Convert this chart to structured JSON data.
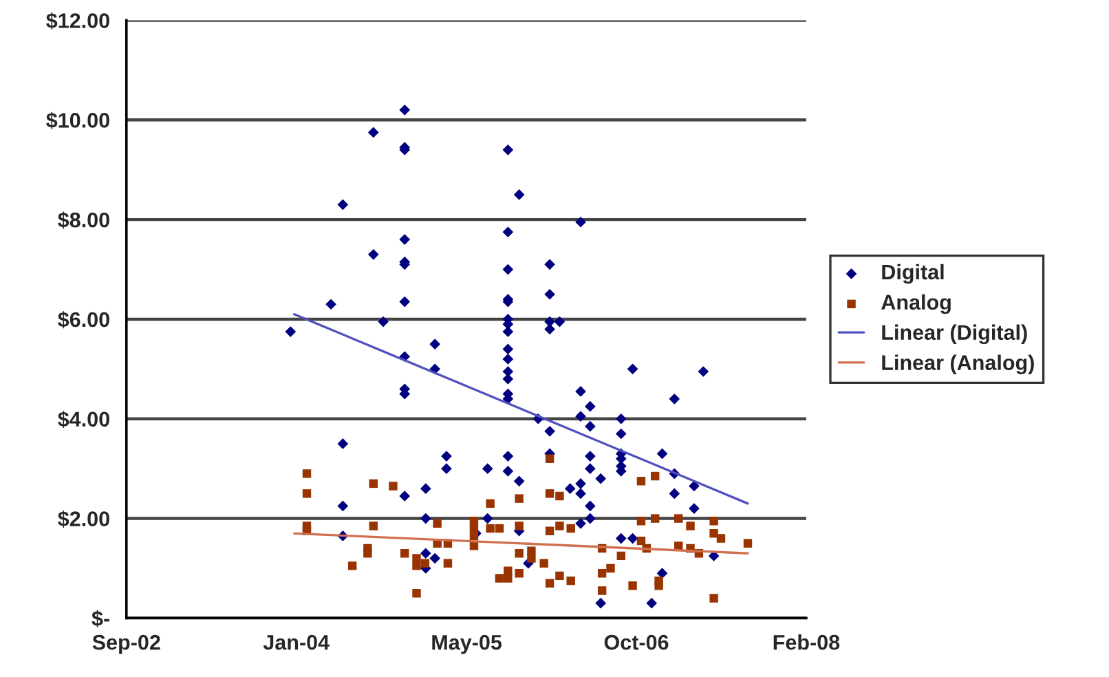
{
  "chart_data": {
    "type": "scatter",
    "legend": "right",
    "grid": "y",
    "xlim": [
      "2002-09-02",
      "2008-02-24"
    ],
    "xticks": [
      {
        "value": "2002-09-02",
        "label": "Sep-02"
      },
      {
        "value": "2004-01-15",
        "label": "Jan-04"
      },
      {
        "value": "2005-05-30",
        "label": "May-05"
      },
      {
        "value": "2006-10-12",
        "label": "Oct-06"
      },
      {
        "value": "2008-02-24",
        "label": "Feb-08"
      }
    ],
    "ylim": [
      0,
      12
    ],
    "yticks": [
      {
        "value": 0,
        "label": "$-"
      },
      {
        "value": 2,
        "label": "$2.00"
      },
      {
        "value": 4,
        "label": "$4.00"
      },
      {
        "value": 6,
        "label": "$6.00"
      },
      {
        "value": 8,
        "label": "$8.00"
      },
      {
        "value": 10,
        "label": "$10.00"
      },
      {
        "value": 12,
        "label": "$12.00"
      }
    ],
    "series": [
      {
        "name": "Digital",
        "marker": "diamond",
        "color": "#000080",
        "x": [
          "2003-12-29",
          "2004-04-26",
          "2004-05-31",
          "2004-05-31",
          "2004-05-31",
          "2004-05-31",
          "2004-08-29",
          "2004-08-29",
          "2004-09-27",
          "2004-11-29",
          "2004-11-29",
          "2004-11-29",
          "2004-11-29",
          "2004-11-29",
          "2004-11-29",
          "2004-11-29",
          "2004-11-29",
          "2004-11-29",
          "2004-11-29",
          "2004-11-29",
          "2005-01-30",
          "2005-01-30",
          "2005-01-30",
          "2005-01-30",
          "2005-02-26",
          "2005-02-26",
          "2005-02-26",
          "2005-04-01",
          "2005-04-01",
          "2005-06-27",
          "2005-07-31",
          "2005-07-31",
          "2005-09-29",
          "2005-09-29",
          "2005-09-29",
          "2005-09-29",
          "2005-09-29",
          "2005-09-29",
          "2005-09-29",
          "2005-09-29",
          "2005-09-29",
          "2005-09-29",
          "2005-09-29",
          "2005-09-29",
          "2005-09-29",
          "2005-09-29",
          "2005-09-29",
          "2005-09-29",
          "2005-11-01",
          "2005-11-01",
          "2005-11-01",
          "2005-11-28",
          "2005-12-27",
          "2006-01-30",
          "2006-01-30",
          "2006-01-30",
          "2006-01-30",
          "2006-01-30",
          "2006-01-30",
          "2006-02-28",
          "2006-03-31",
          "2006-05-01",
          "2006-05-01",
          "2006-05-01",
          "2006-05-01",
          "2006-05-01",
          "2006-05-01",
          "2006-05-29",
          "2006-05-29",
          "2006-05-29",
          "2006-05-29",
          "2006-05-29",
          "2006-05-29",
          "2006-06-29",
          "2006-06-29",
          "2006-08-28",
          "2006-08-28",
          "2006-08-28",
          "2006-08-28",
          "2006-08-28",
          "2006-08-28",
          "2006-08-28",
          "2006-10-01",
          "2006-10-01",
          "2006-11-26",
          "2006-12-27",
          "2006-12-27",
          "2007-02-01",
          "2007-02-01",
          "2007-02-01",
          "2007-03-31",
          "2007-03-31",
          "2007-04-27",
          "2007-05-28"
        ],
        "values": [
          5.75,
          6.3,
          8.3,
          3.5,
          2.25,
          1.65,
          9.75,
          7.3,
          5.95,
          10.2,
          9.45,
          9.4,
          7.6,
          7.15,
          7.1,
          6.35,
          5.25,
          4.6,
          4.5,
          2.45,
          2.6,
          2.0,
          1.3,
          1.0,
          5.5,
          5.0,
          1.2,
          3.25,
          3.0,
          1.7,
          3.0,
          2.0,
          9.4,
          7.75,
          7.0,
          6.4,
          6.35,
          6.0,
          5.9,
          5.75,
          5.4,
          5.2,
          4.95,
          4.8,
          4.5,
          4.4,
          3.25,
          2.95,
          8.5,
          2.75,
          1.75,
          1.1,
          4.0,
          7.1,
          6.5,
          5.95,
          5.8,
          3.75,
          3.3,
          5.95,
          2.6,
          7.95,
          4.55,
          4.05,
          2.7,
          2.5,
          1.9,
          4.25,
          3.85,
          3.25,
          3.0,
          2.25,
          2.0,
          2.8,
          0.3,
          4.0,
          3.7,
          3.3,
          3.2,
          3.05,
          2.95,
          1.6,
          5.0,
          1.6,
          0.3,
          3.3,
          0.9,
          4.4,
          2.9,
          2.5,
          2.65,
          2.2,
          4.95,
          1.25
        ]
      },
      {
        "name": "Analog",
        "marker": "square",
        "color": "#993300",
        "x": [
          "2004-02-15",
          "2004-02-15",
          "2004-02-15",
          "2004-02-15",
          "2004-06-28",
          "2004-08-12",
          "2004-08-12",
          "2004-08-29",
          "2004-08-29",
          "2004-10-26",
          "2004-11-29",
          "2005-01-03",
          "2005-01-03",
          "2005-01-03",
          "2005-01-28",
          "2005-03-05",
          "2005-03-05",
          "2005-04-05",
          "2005-04-05",
          "2005-06-21",
          "2005-06-21",
          "2005-06-21",
          "2005-06-21",
          "2005-08-08",
          "2005-08-08",
          "2005-09-04",
          "2005-09-04",
          "2005-09-29",
          "2005-09-29",
          "2005-11-01",
          "2005-11-01",
          "2005-11-01",
          "2005-11-01",
          "2005-12-07",
          "2005-12-07",
          "2006-01-13",
          "2006-01-30",
          "2006-01-30",
          "2006-01-30",
          "2006-01-30",
          "2006-02-28",
          "2006-02-28",
          "2006-02-28",
          "2006-04-02",
          "2006-04-02",
          "2006-07-03",
          "2006-07-03",
          "2006-07-03",
          "2006-07-28",
          "2006-08-28",
          "2006-10-01",
          "2006-10-26",
          "2006-10-26",
          "2006-10-26",
          "2006-11-11",
          "2006-12-06",
          "2006-12-06",
          "2006-12-17",
          "2006-12-17",
          "2007-02-13",
          "2007-02-13",
          "2007-03-20",
          "2007-03-20",
          "2007-04-14",
          "2007-05-28",
          "2007-05-28",
          "2007-05-28",
          "2007-06-18",
          "2007-09-05"
        ],
        "values": [
          2.9,
          2.5,
          1.85,
          1.75,
          1.05,
          1.4,
          1.3,
          1.85,
          2.7,
          2.65,
          1.3,
          1.2,
          1.05,
          0.5,
          1.1,
          1.9,
          1.5,
          1.1,
          1.5,
          1.95,
          1.8,
          1.65,
          1.45,
          2.3,
          1.8,
          1.8,
          0.8,
          0.8,
          0.95,
          2.4,
          1.85,
          0.9,
          1.3,
          1.35,
          1.2,
          1.1,
          3.2,
          2.5,
          1.75,
          0.7,
          2.45,
          1.85,
          0.85,
          1.8,
          0.75,
          1.4,
          0.9,
          0.55,
          1.0,
          1.25,
          0.65,
          2.75,
          1.95,
          1.55,
          1.4,
          2.85,
          2.0,
          0.75,
          0.65,
          2.0,
          1.45,
          1.4,
          1.85,
          1.3,
          0.4,
          1.95,
          1.7,
          1.6,
          1.5
        ]
      },
      {
        "name": "Linear (Digital)",
        "type": "line",
        "line_style": "solid",
        "color": "#5050c0",
        "x": [
          "2004-01-09",
          "2007-09-05"
        ],
        "values": [
          6.1,
          2.3
        ]
      },
      {
        "name": "Linear (Analog)",
        "type": "line",
        "line_style": "solid",
        "color": "#d07050",
        "x": [
          "2004-01-09",
          "2007-09-05"
        ],
        "values": [
          1.7,
          1.3
        ]
      }
    ]
  }
}
